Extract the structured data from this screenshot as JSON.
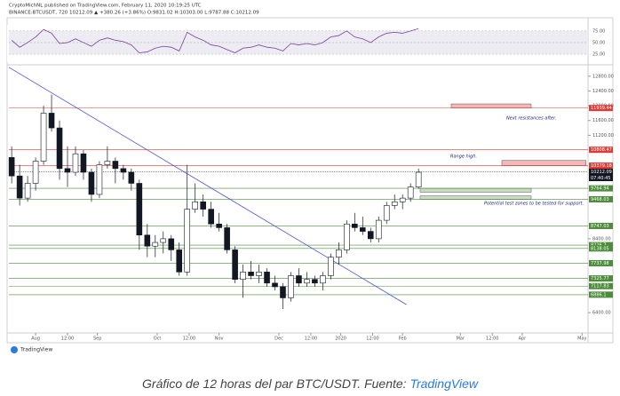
{
  "header": {
    "publisher": "CryptoMichNL published on TradingView.com, February 11, 2020 10:19:25 UTC",
    "symbol": "BINANCE:BTCUSDT, 720  10212.09 ▲ +380.26 (+3.86%)  O:9831.02  H:10303.00  L:9787.88  C:10212.09",
    "logo": "TradingView"
  },
  "chart_data": {
    "type": "candlestick",
    "x": [
      -12,
      -8,
      -4,
      0,
      4,
      8,
      12,
      16,
      20,
      24,
      28,
      32,
      36,
      40,
      44,
      48,
      52,
      56,
      60,
      64,
      68,
      72,
      76,
      80,
      84,
      88,
      92,
      96,
      100,
      104,
      108,
      112,
      116,
      120,
      124,
      128,
      132,
      136,
      140,
      144,
      148,
      152,
      156,
      160,
      164,
      168,
      172,
      176,
      180,
      184,
      188,
      192
    ],
    "open": [
      10600,
      10100,
      9500,
      9900,
      10500,
      11800,
      11400,
      10300,
      10200,
      10700,
      10200,
      9600,
      10400,
      10500,
      10300,
      10200,
      9900,
      8500,
      8200,
      8300,
      8400,
      8100,
      7500,
      9200,
      9400,
      9200,
      8800,
      8700,
      8100,
      7300,
      7500,
      7400,
      7500,
      7200,
      7100,
      6800,
      7400,
      7200,
      7300,
      7200,
      7400,
      7900,
      8100,
      8800,
      8700,
      8600,
      8400,
      8900,
      9300,
      9400,
      9500,
      9800
    ],
    "high": [
      10900,
      10400,
      10100,
      10600,
      12000,
      12300,
      11600,
      10900,
      10900,
      10800,
      10300,
      10500,
      10900,
      10600,
      10400,
      10300,
      10000,
      8800,
      8500,
      8600,
      8500,
      8300,
      10400,
      9900,
      9600,
      9400,
      9100,
      8800,
      8200,
      7700,
      7800,
      7700,
      7600,
      7400,
      7200,
      7500,
      7600,
      7500,
      7400,
      7500,
      8000,
      8300,
      8900,
      9100,
      9000,
      8700,
      9000,
      9400,
      9600,
      9600,
      9900,
      10300
    ],
    "low": [
      9900,
      9300,
      9400,
      9700,
      10400,
      11300,
      10000,
      9800,
      10100,
      10000,
      9400,
      9500,
      10300,
      9900,
      10000,
      9700,
      8100,
      7900,
      7900,
      8000,
      7800,
      7400,
      7400,
      9100,
      9000,
      8700,
      8600,
      8000,
      7200,
      6800,
      7300,
      7200,
      7100,
      7000,
      6500,
      6700,
      7100,
      7100,
      7100,
      7000,
      7300,
      7700,
      8000,
      8600,
      8500,
      8300,
      8300,
      8800,
      9200,
      9200,
      9400,
      9750
    ],
    "close": [
      10100,
      9500,
      9900,
      10500,
      11800,
      11400,
      10300,
      10200,
      10700,
      10200,
      9600,
      10400,
      10500,
      10300,
      10200,
      9900,
      8500,
      8200,
      8300,
      8400,
      8100,
      7500,
      9200,
      9400,
      9200,
      8800,
      8700,
      8100,
      7300,
      7500,
      7400,
      7500,
      7200,
      7100,
      6800,
      7400,
      7200,
      7300,
      7200,
      7400,
      7900,
      8100,
      8800,
      8700,
      8600,
      8400,
      8900,
      9300,
      9400,
      9500,
      9800,
      10200
    ],
    "up_color": "#ffffff",
    "down_color": "#131722",
    "xlim": [
      -13.4,
      277
    ],
    "ylim": [
      5850,
      13060
    ],
    "xticks": [
      {
        "value": 0,
        "label": "Aug"
      },
      {
        "value": 16,
        "label": "12:00"
      },
      {
        "value": 31,
        "label": "Sep"
      },
      {
        "value": 61,
        "label": "Oct"
      },
      {
        "value": 77,
        "label": "12:00"
      },
      {
        "value": 92,
        "label": "Nov"
      },
      {
        "value": 122,
        "label": "Dec"
      },
      {
        "value": 138,
        "label": "12:00"
      },
      {
        "value": 153,
        "label": "2020"
      },
      {
        "value": 169,
        "label": "12:00"
      },
      {
        "value": 184,
        "label": "Feb"
      },
      {
        "value": 213,
        "label": "Mar"
      },
      {
        "value": 229,
        "label": "12:00"
      },
      {
        "value": 244,
        "label": "Apr"
      },
      {
        "value": 274,
        "label": "May"
      }
    ],
    "yticks": [
      {
        "value": 12800,
        "label": "12800.00"
      },
      {
        "value": 12400,
        "label": "12400.00"
      },
      {
        "value": 12000,
        "label": "12000.00"
      },
      {
        "value": 11600,
        "label": "11600.00"
      },
      {
        "value": 11200,
        "label": "11200.00"
      },
      {
        "value": 8400,
        "label": "8400.00"
      },
      {
        "value": 6400,
        "label": "6400.00"
      }
    ],
    "rsi": {
      "values": [
        55,
        40,
        50,
        62,
        78,
        70,
        48,
        50,
        58,
        50,
        42,
        55,
        60,
        55,
        52,
        45,
        28,
        30,
        38,
        42,
        40,
        32,
        72,
        62,
        55,
        45,
        42,
        35,
        28,
        38,
        40,
        45,
        40,
        38,
        32,
        48,
        45,
        48,
        45,
        50,
        62,
        65,
        75,
        62,
        58,
        50,
        62,
        70,
        72,
        70,
        75,
        80
      ],
      "color": "#7b3fa0",
      "ylim": [
        8,
        88
      ],
      "yticks": [
        {
          "value": 75,
          "label": "75.00"
        },
        {
          "value": 50,
          "label": "50.00"
        },
        {
          "value": 25,
          "label": "25.00"
        }
      ]
    },
    "levels": [
      {
        "value": 11939.44,
        "color": "#e53935"
      },
      {
        "value": 10808.47,
        "color": "#e53935"
      },
      {
        "value": 10379.18,
        "color": "#e53935"
      },
      {
        "value": 10212.09,
        "color": "#131722"
      },
      {
        "value": 9764.94,
        "color": "#4c8c3a"
      },
      {
        "value": 9468.03,
        "color": "#4c8c3a"
      },
      {
        "value": 8747.03,
        "color": "#4c8c3a"
      },
      {
        "value": 8226.7,
        "color": "#4c8c3a"
      },
      {
        "value": 8138.05,
        "color": "#4c8c3a"
      },
      {
        "value": 7737.98,
        "color": "#4c8c3a"
      },
      {
        "value": 7325.77,
        "color": "#4c8c3a"
      },
      {
        "value": 7117.83,
        "color": "#4c8c3a"
      },
      {
        "value": 6886.1,
        "color": "#4c8c3a"
      }
    ],
    "countdown": "07:40:45",
    "trendline": {
      "x": [
        -13.4,
        186
      ],
      "y": [
        13040,
        6616
      ],
      "color": "#4a55e0"
    },
    "zones": [
      {
        "x": [
          208.4,
          248.5
        ],
        "y": [
          11939.44,
          12050
        ],
        "color": "#f4b6b6"
      },
      {
        "x": [
          233.8,
          276
        ],
        "y": [
          10379.18,
          10520
        ],
        "color": "#f4b6b6"
      },
      {
        "x": [
          192.8,
          248.5
        ],
        "y": [
          9660,
          9764.94
        ],
        "color": "#c7dcc0"
      },
      {
        "x": [
          192.8,
          248.5
        ],
        "y": [
          9468.03,
          9560
        ],
        "color": "#c7dcc0"
      }
    ],
    "annotations": [
      "Next resistances after.",
      "Range high.",
      "Potential test zones to be tested for support."
    ]
  },
  "caption": {
    "text": "Gráfico de 12 horas del par BTC/USDT. Fuente: ",
    "link": "TradingView"
  }
}
